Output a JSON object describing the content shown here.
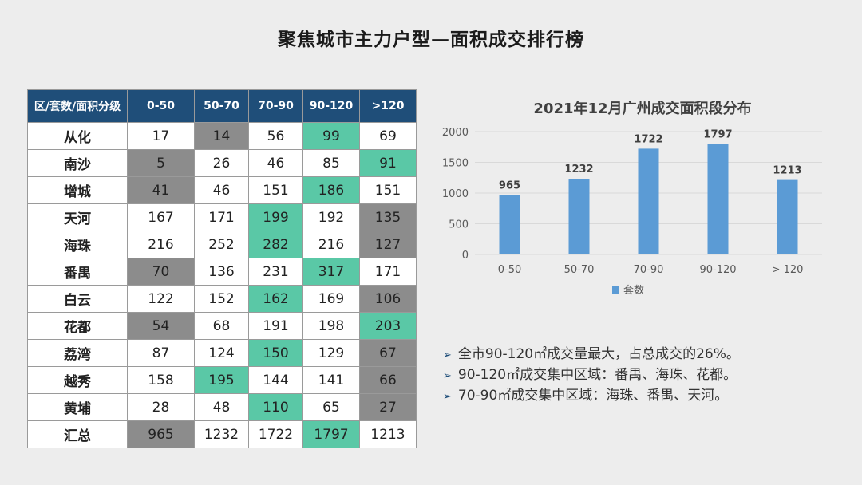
{
  "title": "聚焦城市主力户型—面积成交排行榜",
  "table": {
    "headers": [
      "区/套数/面积分级",
      "0-50",
      "50-70",
      "70-90",
      "90-120",
      ">120"
    ],
    "rows": [
      {
        "name": "从化",
        "values": [
          "17",
          "14",
          "56",
          "99",
          "69"
        ],
        "marks": [
          "",
          "gray",
          "",
          "green",
          ""
        ]
      },
      {
        "name": "南沙",
        "values": [
          "5",
          "26",
          "46",
          "85",
          "91"
        ],
        "marks": [
          "gray",
          "",
          "",
          "",
          "green"
        ]
      },
      {
        "name": "增城",
        "values": [
          "41",
          "46",
          "151",
          "186",
          "151"
        ],
        "marks": [
          "gray",
          "",
          "",
          "green",
          ""
        ]
      },
      {
        "name": "天河",
        "values": [
          "167",
          "171",
          "199",
          "192",
          "135"
        ],
        "marks": [
          "",
          "",
          "green",
          "",
          "gray"
        ]
      },
      {
        "name": "海珠",
        "values": [
          "216",
          "252",
          "282",
          "216",
          "127"
        ],
        "marks": [
          "",
          "",
          "green",
          "",
          "gray"
        ]
      },
      {
        "name": "番禺",
        "values": [
          "70",
          "136",
          "231",
          "317",
          "171"
        ],
        "marks": [
          "gray",
          "",
          "",
          "green",
          ""
        ]
      },
      {
        "name": "白云",
        "values": [
          "122",
          "152",
          "162",
          "169",
          "106"
        ],
        "marks": [
          "",
          "",
          "green",
          "",
          "gray"
        ]
      },
      {
        "name": "花都",
        "values": [
          "54",
          "68",
          "191",
          "198",
          "203"
        ],
        "marks": [
          "gray",
          "",
          "",
          "",
          "green"
        ]
      },
      {
        "name": "荔湾",
        "values": [
          "87",
          "124",
          "150",
          "129",
          "67"
        ],
        "marks": [
          "",
          "",
          "green",
          "",
          "gray"
        ]
      },
      {
        "name": "越秀",
        "values": [
          "158",
          "195",
          "144",
          "141",
          "66"
        ],
        "marks": [
          "",
          "green",
          "",
          "",
          "gray"
        ]
      },
      {
        "name": "黄埔",
        "values": [
          "28",
          "48",
          "110",
          "65",
          "27"
        ],
        "marks": [
          "",
          "",
          "green",
          "",
          "gray"
        ]
      },
      {
        "name": "汇总",
        "values": [
          "965",
          "1232",
          "1722",
          "1797",
          "1213"
        ],
        "marks": [
          "gray",
          "",
          "",
          "green",
          ""
        ]
      }
    ]
  },
  "colors": {
    "header": "#1f4e79",
    "green": "#5ac8a6",
    "gray": "#8c8c8c",
    "bar": "#5b9bd5"
  },
  "chart_data": {
    "type": "bar",
    "title": "2021年12月广州成交面积段分布",
    "categories": [
      "0-50",
      "50-70",
      "70-90",
      "90-120",
      "> 120"
    ],
    "series": [
      {
        "name": "套数",
        "values": [
          965,
          1232,
          1722,
          1797,
          1213
        ]
      }
    ],
    "yticks": [
      0,
      500,
      1000,
      1500,
      2000
    ],
    "ylim": [
      0,
      2000
    ],
    "legend": "bottom"
  },
  "bullets": [
    "全市90-120㎡成交量最大，占总成交的26%。",
    "90-120㎡成交集中区域：番禺、海珠、花都。",
    "70-90㎡成交集中区域：海珠、番禺、天河。"
  ]
}
